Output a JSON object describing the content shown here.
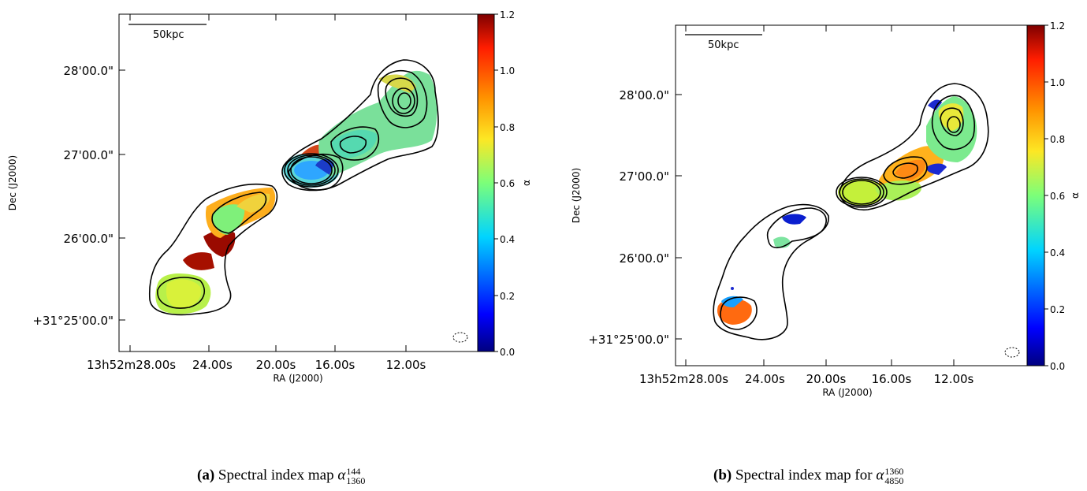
{
  "panels": [
    {
      "id": "a",
      "scalebar_label": "50kpc",
      "dec_ticks": [
        "28'00.0\"",
        "27'00.0\"",
        "26'00.0\"",
        "+31°25'00.0\""
      ],
      "ra_ticks": [
        "13h52m28.00s",
        "24.00s",
        "20.00s",
        "16.00s",
        "12.00s"
      ],
      "xlabel": "RA (J2000)",
      "ylabel": "Dec (J2000)",
      "colorbar_label": "α",
      "colorbar_ticks": [
        "1.2",
        "1.0",
        "0.8",
        "0.6",
        "0.4",
        "0.2",
        "0.0"
      ],
      "caption_tag": "(a)",
      "caption_text": "Spectral index map",
      "caption_symbol": "α",
      "caption_sup": "144",
      "caption_sub": "1360"
    },
    {
      "id": "b",
      "scalebar_label": "50kpc",
      "dec_ticks": [
        "28'00.0\"",
        "27'00.0\"",
        "26'00.0\"",
        "+31°25'00.0\""
      ],
      "ra_ticks": [
        "13h52m28.00s",
        "24.00s",
        "20.00s",
        "16.00s",
        "12.00s"
      ],
      "xlabel": "RA (J2000)",
      "ylabel": "Dec (J2000)",
      "colorbar_label": "α",
      "colorbar_ticks": [
        "1.2",
        "1.0",
        "0.8",
        "0.6",
        "0.4",
        "0.2",
        "0.0"
      ],
      "caption_tag": "(b)",
      "caption_text": "Spectral index map for",
      "caption_symbol": "α",
      "caption_sup": "1360",
      "caption_sub": "4850"
    }
  ],
  "colorbar": {
    "min": 0.0,
    "max": 1.2,
    "colormap_stops": [
      "#00007f",
      "#0000ff",
      "#0080ff",
      "#00e5f8",
      "#7cff79",
      "#fde724",
      "#ff9400",
      "#ff1d00",
      "#7f0000"
    ]
  }
}
